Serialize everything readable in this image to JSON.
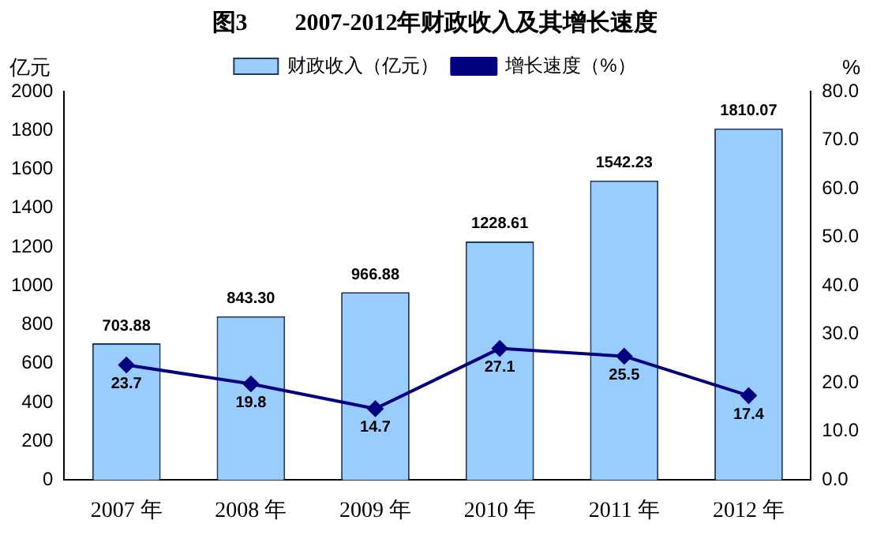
{
  "chart_data": {
    "type": "bar",
    "title": "图3　　2007-2012年财政收入及其增长速度",
    "ylabel": "亿元",
    "y2label": "%",
    "categories": [
      "2007 年",
      "2008 年",
      "2009 年",
      "2010 年",
      "2011 年",
      "2012 年"
    ],
    "series": [
      {
        "name": "财政收入（亿元）",
        "color": "#99ccff",
        "values": [
          703.88,
          843.3,
          966.88,
          1228.61,
          1542.23,
          1810.07
        ],
        "value_labels": [
          "703.88",
          "843.30",
          "966.88",
          "1228.61",
          "1542.23",
          "1810.07"
        ]
      },
      {
        "name": "增长速度（%）",
        "type": "line",
        "axis": "y2",
        "color": "#000080",
        "values": [
          23.7,
          19.8,
          14.7,
          27.1,
          25.5,
          17.4
        ],
        "value_labels": [
          "23.7",
          "19.8",
          "14.7",
          "27.1",
          "25.5",
          "17.4"
        ],
        "marker": "diamond",
        "line_style": "solid"
      }
    ],
    "ylim": [
      0,
      2000
    ],
    "yticks": [
      0,
      200,
      400,
      600,
      800,
      1000,
      1200,
      1400,
      1600,
      1800,
      2000
    ],
    "y2lim": [
      0,
      80
    ],
    "y2ticks": [
      {
        "value": 0,
        "label": "0.0"
      },
      {
        "value": 10,
        "label": "10.0"
      },
      {
        "value": 20,
        "label": "20.0"
      },
      {
        "value": 30,
        "label": "30.0"
      },
      {
        "value": 40,
        "label": "40.0"
      },
      {
        "value": 50,
        "label": "50.0"
      },
      {
        "value": 60,
        "label": "60.0"
      },
      {
        "value": 70,
        "label": "70.0"
      },
      {
        "value": 80,
        "label": "80.0"
      }
    ],
    "grid": false,
    "legend": "top"
  }
}
